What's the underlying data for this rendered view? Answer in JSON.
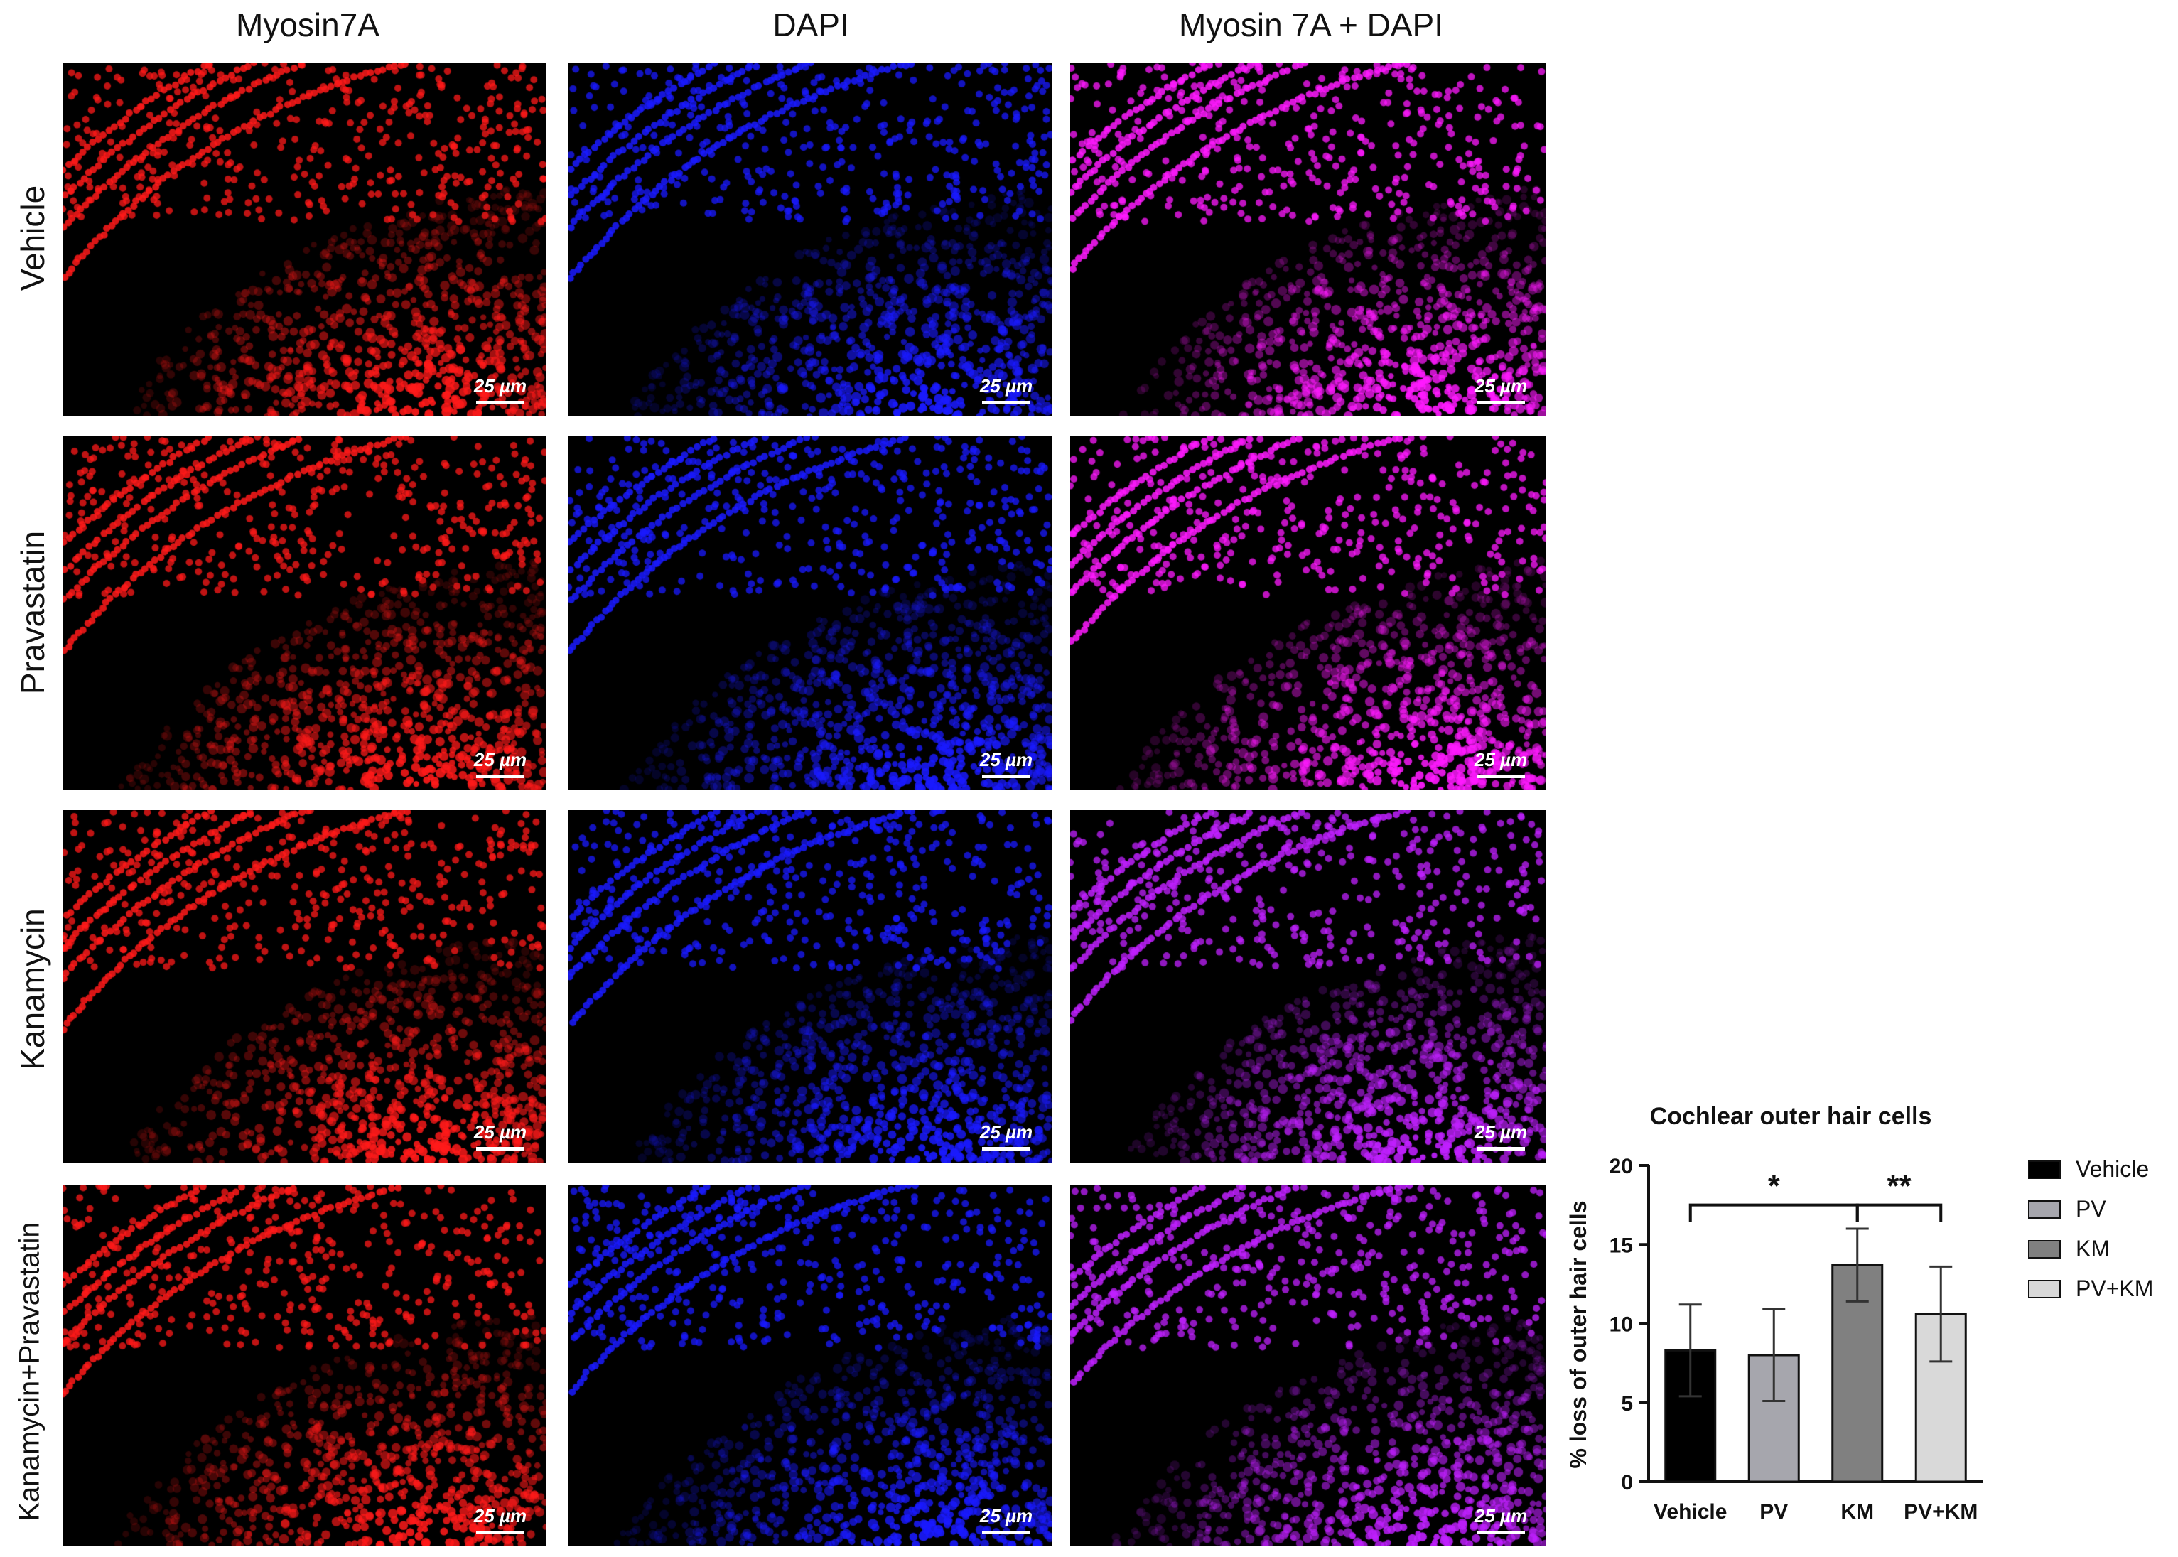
{
  "columns": [
    "Myosin7A",
    "DAPI",
    "Myosin  7A + DAPI"
  ],
  "rows": [
    "Vehicle",
    "Pravastatin",
    "Kanamycin",
    "Kanamycin+Pravastatin"
  ],
  "scale_bar_label": "25 µm",
  "channel_colors": {
    "myosin": "#ff1a1a",
    "dapi": "#1a1aff",
    "merge": "#ff1aff",
    "merge_km": "#c020ff"
  },
  "chart_data": {
    "type": "bar",
    "title": "Cochlear outer hair cells",
    "ylabel": "% loss of outer hair cells",
    "xlabel": "",
    "categories": [
      "Vehicle",
      "PV",
      "KM",
      "PV+KM"
    ],
    "values": [
      8.3,
      8.0,
      13.7,
      10.6
    ],
    "errors": [
      2.9,
      2.9,
      2.3,
      3.0
    ],
    "colors": [
      "#000000",
      "#a6a6ad",
      "#808080",
      "#d9d9d9"
    ],
    "ylim": [
      0,
      20
    ],
    "yticks": [
      0,
      5,
      10,
      15,
      20
    ],
    "legend": [
      "Vehicle",
      "PV",
      "KM",
      "PV+KM"
    ],
    "legend_position": "right",
    "significance": [
      {
        "from": "Vehicle",
        "to": "KM",
        "label": "*"
      },
      {
        "from": "KM",
        "to": "PV+KM",
        "label": "**"
      }
    ]
  }
}
